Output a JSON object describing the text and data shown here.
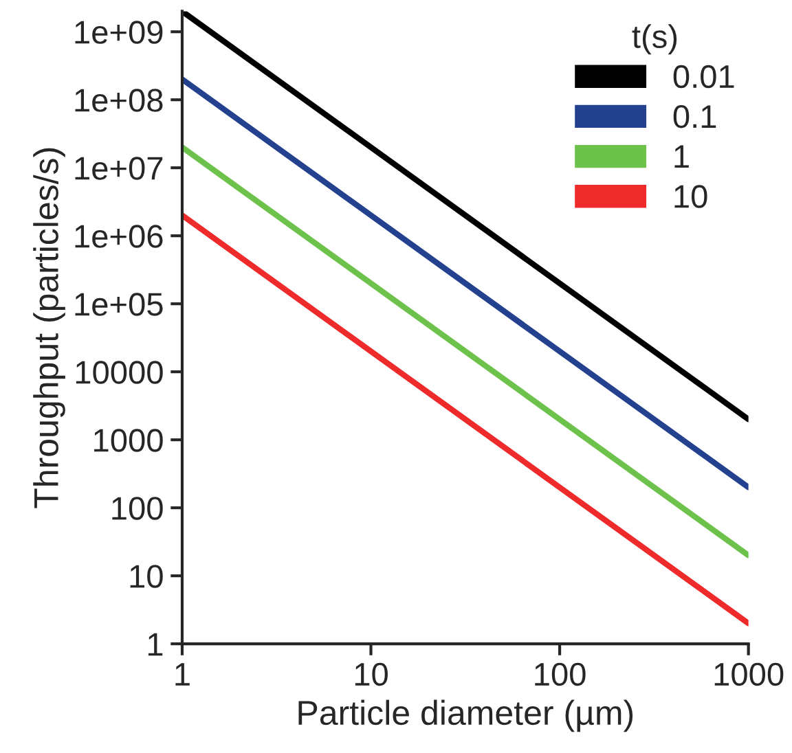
{
  "chart_data": {
    "type": "line",
    "xlabel": "Particle diameter (µm)",
    "ylabel": "Throughput (particles/s)",
    "legend_title": "t(s)",
    "log": "xy",
    "grid": false,
    "legend": "top right",
    "marker": "none",
    "line_style": "solid",
    "xlim": [
      1,
      1000
    ],
    "ylim": [
      1,
      2000000000
    ],
    "xticks": [
      1,
      10,
      100,
      1000
    ],
    "yticks": [
      1,
      10,
      100,
      1000,
      10000,
      {
        "value": 100000,
        "label": "1e+05"
      },
      {
        "value": 1000000,
        "label": "1e+06"
      },
      {
        "value": 10000000,
        "label": "1e+07"
      },
      {
        "value": 100000000,
        "label": "1e+08"
      },
      {
        "value": 1000000000,
        "label": "1e+09"
      }
    ],
    "x": [
      1,
      1000
    ],
    "series": [
      {
        "name": "0.01",
        "color": "#000000",
        "values": [
          2000000000,
          2000
        ]
      },
      {
        "name": "0.1",
        "color": "#24418f",
        "values": [
          200000000,
          200
        ]
      },
      {
        "name": "1",
        "color": "#6cc24a",
        "values": [
          20000000,
          20
        ]
      },
      {
        "name": "10",
        "color": "#ee2a2a",
        "values": [
          2000000,
          2
        ]
      }
    ]
  }
}
